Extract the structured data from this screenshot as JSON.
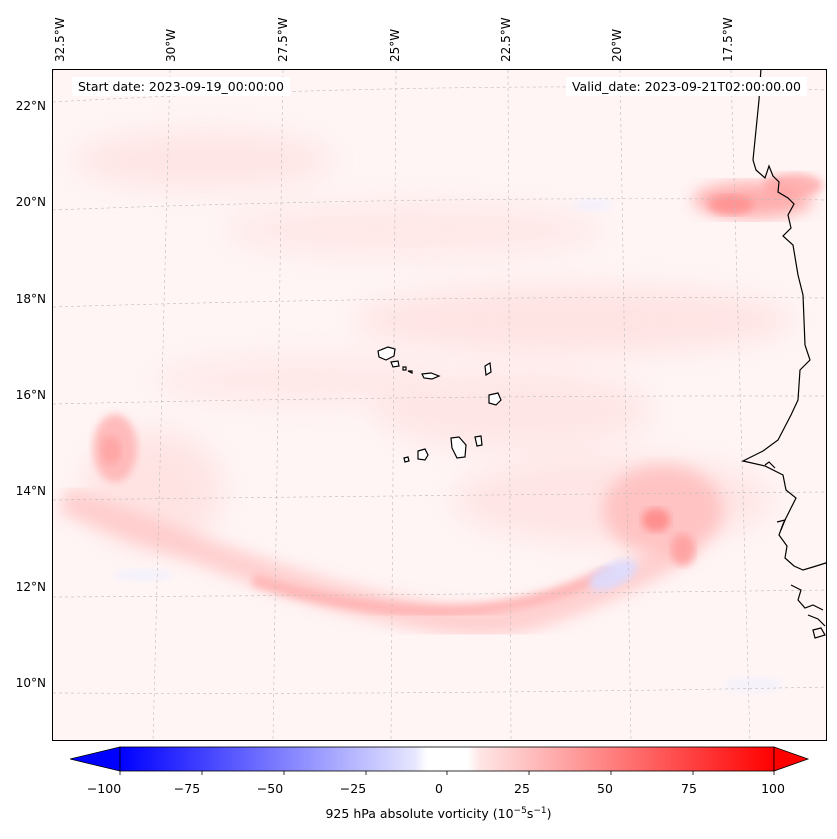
{
  "map": {
    "header": {
      "start_date": "Start date: 2023-09-19_00:00:00",
      "valid_date": "Valid_date: 2023-09-21T02:00:00.00"
    },
    "longitude_labels": [
      "32.5°W",
      "30°W",
      "27.5°W",
      "25°W",
      "22.5°W",
      "20°W",
      "17.5°W"
    ],
    "latitude_labels": [
      "22°N",
      "20°N",
      "18°N",
      "16°N",
      "14°N",
      "12°N",
      "10°N"
    ],
    "field": "925 hPa absolute vorticity",
    "colors": {
      "negative_max": "#0000ff",
      "neutral": "#ffffff",
      "positive_max": "#ff0000",
      "coastline": "#000000",
      "gridline": "#bbbbbb"
    }
  },
  "colorbar": {
    "ticks": [
      "−100",
      "−75",
      "−50",
      "−25",
      "0",
      "25",
      "50",
      "75",
      "100"
    ],
    "range": [
      -100,
      100
    ],
    "label_main": "925 hPa absolute vorticity (10",
    "label_exp1": "−5",
    "label_mid": "s",
    "label_exp2": "−1",
    "label_end": ")",
    "extend": "both"
  }
}
